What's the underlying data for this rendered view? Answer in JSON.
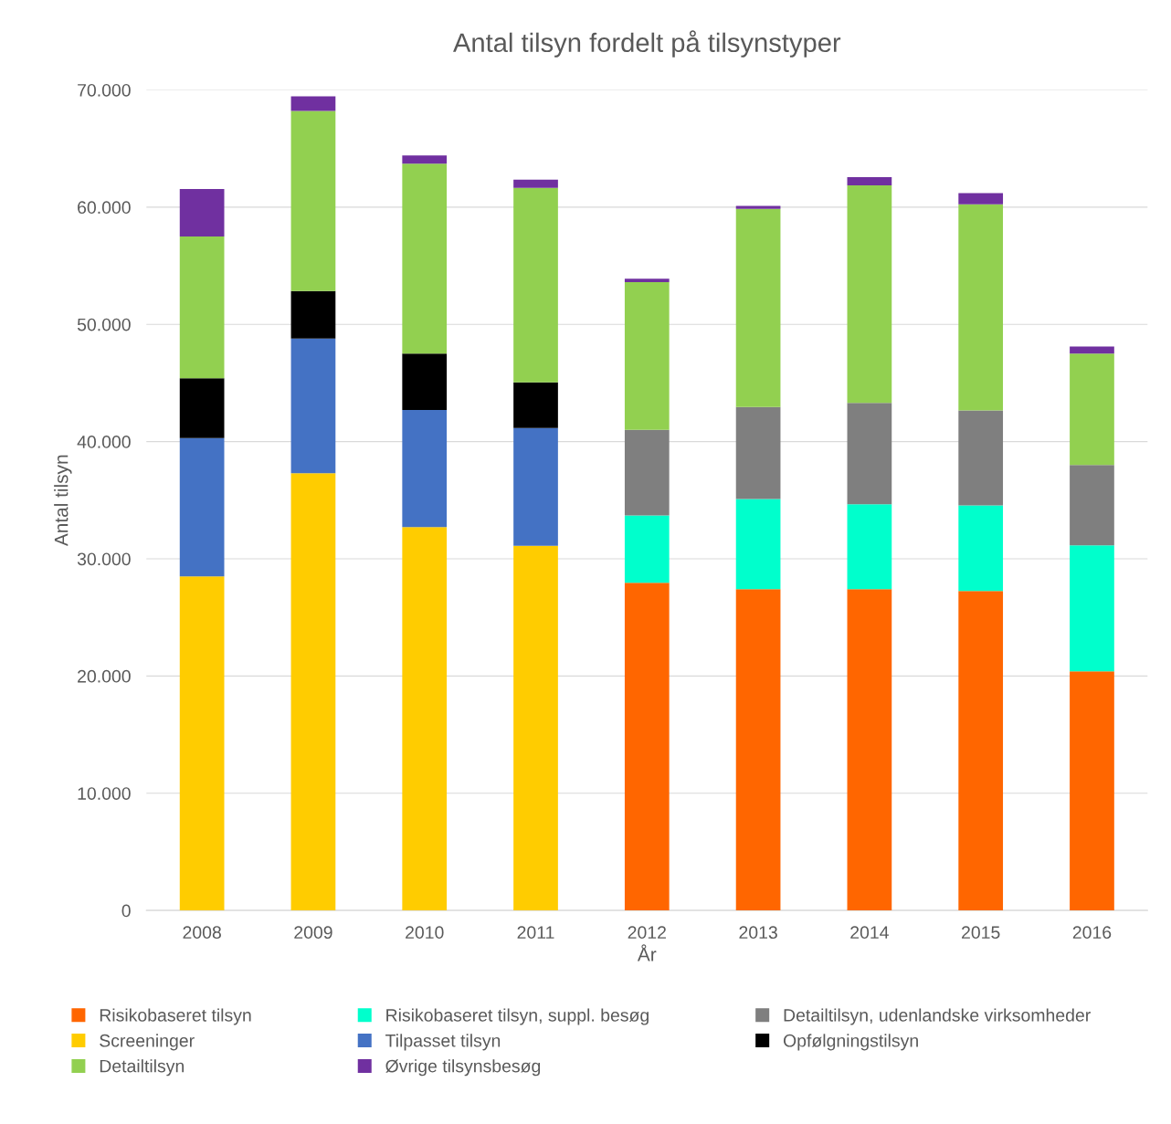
{
  "chart_data": {
    "type": "bar",
    "stacked": true,
    "title": "Antal tilsyn fordelt på tilsynstyper",
    "xlabel": "År",
    "ylabel": "Antal tilsyn",
    "categories": [
      "2008",
      "2009",
      "2010",
      "2011",
      "2012",
      "2013",
      "2014",
      "2015",
      "2016"
    ],
    "series": [
      {
        "name": "Risikobaseret tilsyn",
        "color": "#ff6600",
        "values": [
          null,
          null,
          null,
          null,
          27950,
          27400,
          27400,
          27250,
          20400
        ]
      },
      {
        "name": "Risikobaseret tilsyn, suppl. besøg",
        "color": "#00ffcc",
        "values": [
          null,
          null,
          null,
          null,
          5750,
          7700,
          7250,
          7300,
          10750
        ]
      },
      {
        "name": "Detailtilsyn, udenlandske virksomheder",
        "color": "#7f7f7f",
        "values": [
          null,
          null,
          null,
          null,
          7300,
          7850,
          8650,
          8100,
          6850
        ]
      },
      {
        "name": "Screeninger",
        "color": "#ffcc00",
        "values": [
          28500,
          37300,
          32700,
          31100,
          null,
          null,
          null,
          null,
          null
        ]
      },
      {
        "name": "Tilpasset tilsyn",
        "color": "#4472c4",
        "values": [
          11800,
          11500,
          10000,
          10050,
          null,
          null,
          null,
          null,
          null
        ]
      },
      {
        "name": "Opfølgningstilsyn",
        "color": "#000000",
        "values": [
          5100,
          4050,
          4800,
          3900,
          null,
          null,
          null,
          null,
          null
        ]
      },
      {
        "name": "Detailtilsyn",
        "color": "#92d050",
        "values": [
          12100,
          15350,
          16200,
          16600,
          12600,
          16900,
          18550,
          17600,
          9500
        ]
      },
      {
        "name": "Øvrige tilsynsbesøg",
        "color": "#7030a0",
        "values": [
          4050,
          1250,
          700,
          700,
          300,
          250,
          700,
          950,
          600
        ]
      }
    ],
    "ylim": [
      0,
      70000
    ],
    "yticks": [
      0,
      {
        "value": 10000,
        "label": "10.000"
      },
      {
        "value": 20000,
        "label": "20.000"
      },
      {
        "value": 30000,
        "label": "30.000"
      },
      {
        "value": 40000,
        "label": "40.000"
      },
      {
        "value": 50000,
        "label": "50.000"
      },
      {
        "value": 60000,
        "label": "60.000"
      },
      {
        "value": 70000,
        "label": "70.000"
      }
    ],
    "grid": "y",
    "legend": "bottom"
  }
}
